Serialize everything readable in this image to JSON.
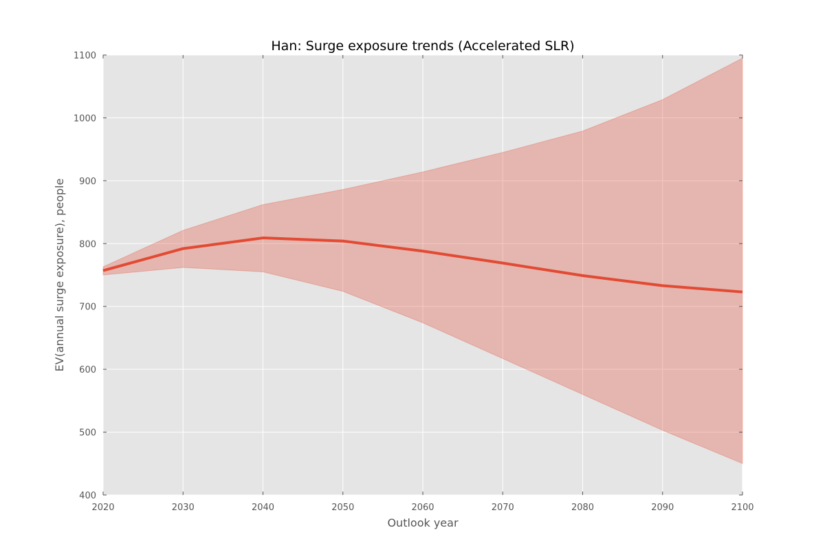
{
  "chart_data": {
    "type": "line",
    "title": "Han: Surge exposure trends (Accelerated SLR)",
    "xlabel": "Outlook year",
    "ylabel": "EV(annual surge exposure), people",
    "xlim": [
      2020,
      2100
    ],
    "ylim": [
      400,
      1100
    ],
    "x_ticks": [
      "2020",
      "2030",
      "2040",
      "2050",
      "2060",
      "2070",
      "2080",
      "2090",
      "2100"
    ],
    "y_ticks": [
      "400",
      "500",
      "600",
      "700",
      "800",
      "900",
      "1000",
      "1100"
    ],
    "grid": true,
    "x": [
      2020,
      2030,
      2040,
      2050,
      2060,
      2070,
      2080,
      2090,
      2100
    ],
    "series": [
      {
        "values": [
          757,
          792,
          809,
          804,
          788,
          769,
          749,
          733,
          723
        ],
        "color": "#e24a33"
      }
    ],
    "band": {
      "upper": [
        763,
        821,
        862,
        886,
        914,
        945,
        979,
        1029,
        1095
      ],
      "lower": [
        750,
        762,
        755,
        724,
        674,
        617,
        560,
        503,
        450
      ],
      "color": "#e24a33",
      "opacity": 0.3
    }
  }
}
